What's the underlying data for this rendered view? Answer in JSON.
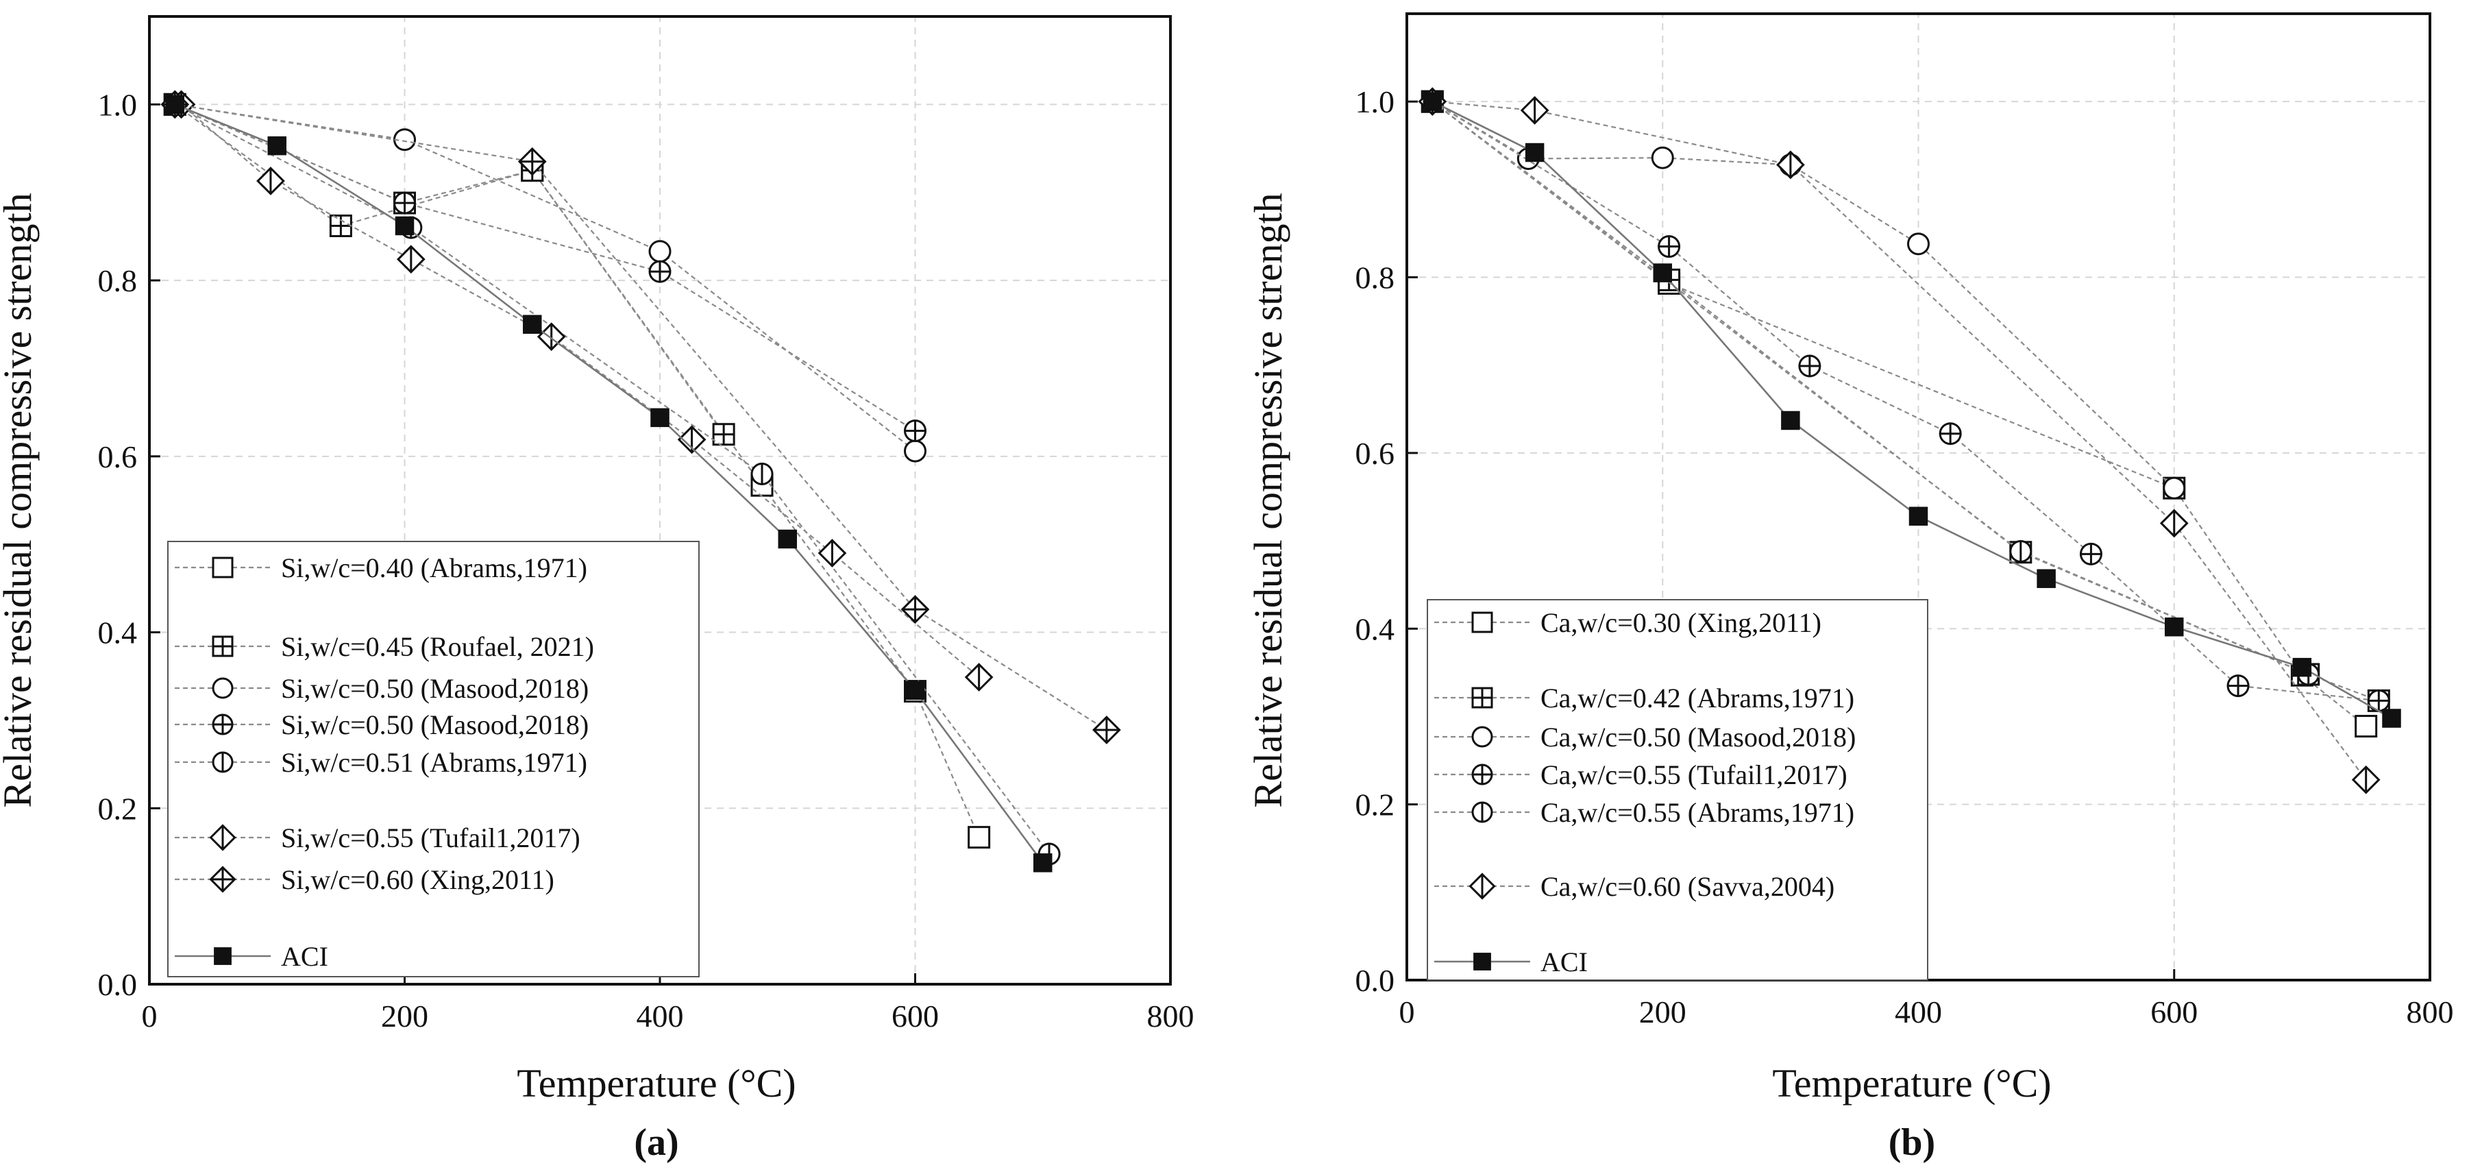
{
  "chart_data": [
    {
      "type": "line",
      "panel_label": "(a)",
      "xlabel": "Temperature (°C)",
      "ylabel": "Relative residual compressive strength",
      "xlim": [
        0,
        800
      ],
      "ylim": [
        0,
        1.1
      ],
      "xticks": [
        0,
        200,
        400,
        600,
        800
      ],
      "yticks": [
        0.0,
        0.2,
        0.4,
        0.6,
        0.8,
        1.0
      ],
      "xtick_labels": [
        "0",
        "200",
        "400",
        "600",
        "800"
      ],
      "ytick_labels": [
        "0.0",
        "0.2",
        "0.4",
        "0.6",
        "0.8",
        "1.0"
      ],
      "grid": true,
      "legend_position": "bottom-left",
      "series": [
        {
          "name": "Si,w/c=0.40 (Abrams,1971)",
          "marker": "square",
          "x": [
            20,
            200,
            300,
            480,
            600,
            650
          ],
          "y": [
            1.0,
            0.888,
            0.925,
            0.567,
            0.333,
            0.167
          ]
        },
        {
          "name": "Si,w/c=0.45 (Roufael, 2021)",
          "marker": "square-plus",
          "x": [
            20,
            150,
            300,
            450
          ],
          "y": [
            1.0,
            0.862,
            0.925,
            0.625
          ]
        },
        {
          "name": "Si,w/c=0.50 (Masood,2018)",
          "marker": "circle",
          "x": [
            20,
            200,
            400,
            600
          ],
          "y": [
            1.0,
            0.96,
            0.833,
            0.606
          ]
        },
        {
          "name": "Si,w/c=0.50 (Masood,2018)",
          "marker": "circle-plus",
          "x": [
            20,
            200,
            400,
            600
          ],
          "y": [
            1.0,
            0.888,
            0.81,
            0.629
          ]
        },
        {
          "name": "Si,w/c=0.51 (Abrams,1971)",
          "marker": "circle-vline",
          "x": [
            20,
            205,
            480,
            705
          ],
          "y": [
            1.0,
            0.86,
            0.58,
            0.148
          ]
        },
        {
          "name": "Si,w/c=0.55 (Tufail1,2017)",
          "marker": "diamond-half",
          "x": [
            25,
            95,
            205,
            315,
            425,
            535,
            650
          ],
          "y": [
            1.0,
            0.913,
            0.824,
            0.736,
            0.619,
            0.49,
            0.349
          ]
        },
        {
          "name": "Si,w/c=0.60 (Xing,2011)",
          "marker": "diamond-plus",
          "x": [
            20,
            300,
            600,
            750
          ],
          "y": [
            1.0,
            0.935,
            0.426,
            0.289
          ]
        },
        {
          "name": "ACI",
          "marker": "filled-square",
          "x": [
            20,
            100,
            200,
            300,
            400,
            500,
            600,
            700
          ],
          "y": [
            1.0,
            0.953,
            0.862,
            0.75,
            0.644,
            0.506,
            0.334,
            0.138
          ]
        }
      ]
    },
    {
      "type": "line",
      "panel_label": "(b)",
      "xlabel": "Temperature (°C)",
      "ylabel": "Relative residual compressive strength",
      "xlim": [
        0,
        800
      ],
      "ylim": [
        0,
        1.1
      ],
      "xticks": [
        0,
        200,
        400,
        600,
        800
      ],
      "yticks": [
        0.0,
        0.2,
        0.4,
        0.6,
        0.8,
        1.0
      ],
      "xtick_labels": [
        "0",
        "200",
        "400",
        "600",
        "800"
      ],
      "ytick_labels": [
        "0.0",
        "0.2",
        "0.4",
        "0.6",
        "0.8",
        "1.0"
      ],
      "grid": true,
      "legend_position": "bottom-left",
      "series": [
        {
          "name": "Ca,w/c=0.30 (Xing,2011)",
          "marker": "square",
          "x": [
            20,
            205,
            600,
            700,
            750
          ],
          "y": [
            1.0,
            0.793,
            0.56,
            0.347,
            0.289
          ]
        },
        {
          "name": "Ca,w/c=0.42 (Abrams,1971)",
          "marker": "square-plus",
          "x": [
            20,
            205,
            480,
            705,
            760
          ],
          "y": [
            1.0,
            0.797,
            0.487,
            0.348,
            0.318
          ]
        },
        {
          "name": "Ca,w/c=0.50 (Masood,2018)",
          "marker": "circle",
          "x": [
            20,
            95,
            200,
            300,
            400,
            600
          ],
          "y": [
            1.0,
            0.935,
            0.936,
            0.928,
            0.838,
            0.56
          ]
        },
        {
          "name": "Ca,w/c=0.55 (Tufail1,2017)",
          "marker": "circle-plus",
          "x": [
            20,
            205,
            315,
            425,
            535,
            650,
            760
          ],
          "y": [
            1.0,
            0.835,
            0.699,
            0.622,
            0.485,
            0.335,
            0.318
          ]
        },
        {
          "name": "Ca,w/c=0.55 (Abrams,1971)",
          "marker": "circle-vline",
          "x": [
            20,
            480,
            705
          ],
          "y": [
            1.0,
            0.488,
            0.348
          ]
        },
        {
          "name": "Ca,w/c=0.60 (Savva,2004)",
          "marker": "diamond-half",
          "x": [
            20,
            100,
            300,
            600,
            750
          ],
          "y": [
            1.0,
            0.99,
            0.928,
            0.52,
            0.228
          ]
        },
        {
          "name": "ACI",
          "marker": "filled-square",
          "x": [
            20,
            100,
            200,
            300,
            400,
            500,
            600,
            700,
            770
          ],
          "y": [
            1.0,
            0.942,
            0.805,
            0.637,
            0.528,
            0.457,
            0.402,
            0.356,
            0.298
          ]
        }
      ]
    }
  ]
}
